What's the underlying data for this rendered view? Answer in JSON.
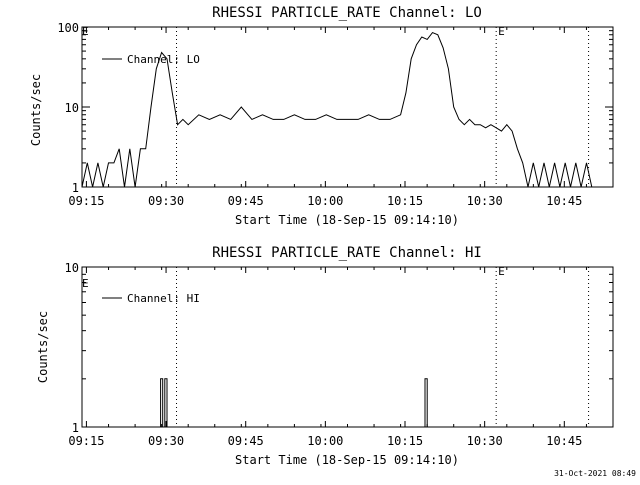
{
  "footer_text": "31-Oct-2021 08:49",
  "chart_data": [
    {
      "type": "line",
      "title": "RHESSI PARTICLE_RATE Channel: LO",
      "xlabel": "Start Time (18-Sep-15 09:14:10)",
      "ylabel": "Counts/sec",
      "yscale": "log",
      "ylim": [
        1,
        100
      ],
      "xlim_minutes": [
        0,
        100
      ],
      "x_ticks": [
        "09:15",
        "09:30",
        "09:45",
        "10:00",
        "10:15",
        "10:30",
        "10:45"
      ],
      "x_tick_minutes": [
        0.83,
        15.83,
        30.83,
        45.83,
        60.83,
        75.83,
        90.83
      ],
      "y_ticks": [
        "1",
        "10",
        "100"
      ],
      "y_tick_values": [
        1,
        10,
        100
      ],
      "legend": [
        {
          "label": "Channel: LO"
        }
      ],
      "markers": [
        {
          "x": 17.8,
          "label": ""
        },
        {
          "x": 78.0,
          "label": "E"
        },
        {
          "x": 95.4,
          "label": ""
        }
      ],
      "corner_label": "E",
      "series": [
        {
          "name": "Channel: LO",
          "x": [
            0,
            1,
            2,
            3,
            4,
            5,
            6,
            7,
            8,
            9,
            10,
            11,
            12,
            13,
            14,
            15,
            16,
            17,
            18,
            19,
            20,
            22,
            24,
            26,
            28,
            30,
            32,
            34,
            36,
            38,
            40,
            42,
            44,
            46,
            48,
            50,
            52,
            54,
            56,
            58,
            60,
            61,
            62,
            63,
            64,
            65,
            66,
            67,
            68,
            69,
            70,
            71,
            72,
            73,
            74,
            75,
            76,
            77,
            78,
            79,
            80,
            81,
            82,
            83,
            84,
            85,
            86,
            87,
            88,
            89,
            90,
            91,
            92,
            93,
            94,
            95,
            96
          ],
          "y": [
            1,
            2,
            1,
            2,
            1,
            2,
            2,
            3,
            1,
            3,
            1,
            3,
            3,
            10,
            30,
            48,
            40,
            15,
            6,
            7,
            6,
            8,
            7,
            8,
            7,
            10,
            7,
            8,
            7,
            7,
            8,
            7,
            7,
            8,
            7,
            7,
            7,
            8,
            7,
            7,
            8,
            15,
            40,
            60,
            75,
            70,
            85,
            80,
            55,
            30,
            10,
            7,
            6,
            7,
            6,
            6,
            5.5,
            6,
            5.5,
            5,
            6,
            5,
            3,
            2,
            1,
            2,
            1,
            2,
            1,
            2,
            1,
            2,
            1,
            2,
            1,
            2,
            1
          ]
        }
      ]
    },
    {
      "type": "line",
      "title": "RHESSI PARTICLE_RATE Channel: HI",
      "xlabel": "Start Time (18-Sep-15 09:14:10)",
      "ylabel": "Counts/sec",
      "yscale": "log",
      "ylim": [
        1,
        10
      ],
      "xlim_minutes": [
        0,
        100
      ],
      "x_ticks": [
        "09:15",
        "09:30",
        "09:45",
        "10:00",
        "10:15",
        "10:30",
        "10:45"
      ],
      "x_tick_minutes": [
        0.83,
        15.83,
        30.83,
        45.83,
        60.83,
        75.83,
        90.83
      ],
      "y_ticks": [
        "1",
        "10"
      ],
      "y_tick_values": [
        1,
        10
      ],
      "legend": [
        {
          "label": "Channel: HI"
        }
      ],
      "markers": [
        {
          "x": 17.8,
          "label": ""
        },
        {
          "x": 78.0,
          "label": "E"
        },
        {
          "x": 95.4,
          "label": ""
        }
      ],
      "corner_label": "E",
      "series": [
        {
          "name": "Channel: HI",
          "x": [
            0,
            14.8,
            14.8,
            15.2,
            15.2,
            15.6,
            15.6,
            16.0,
            16.0,
            64.6,
            64.6,
            65.0,
            65.0,
            100
          ],
          "y": [
            1,
            1,
            2,
            2,
            1,
            1,
            2,
            2,
            1,
            1,
            2,
            2,
            1,
            1
          ]
        }
      ]
    }
  ]
}
